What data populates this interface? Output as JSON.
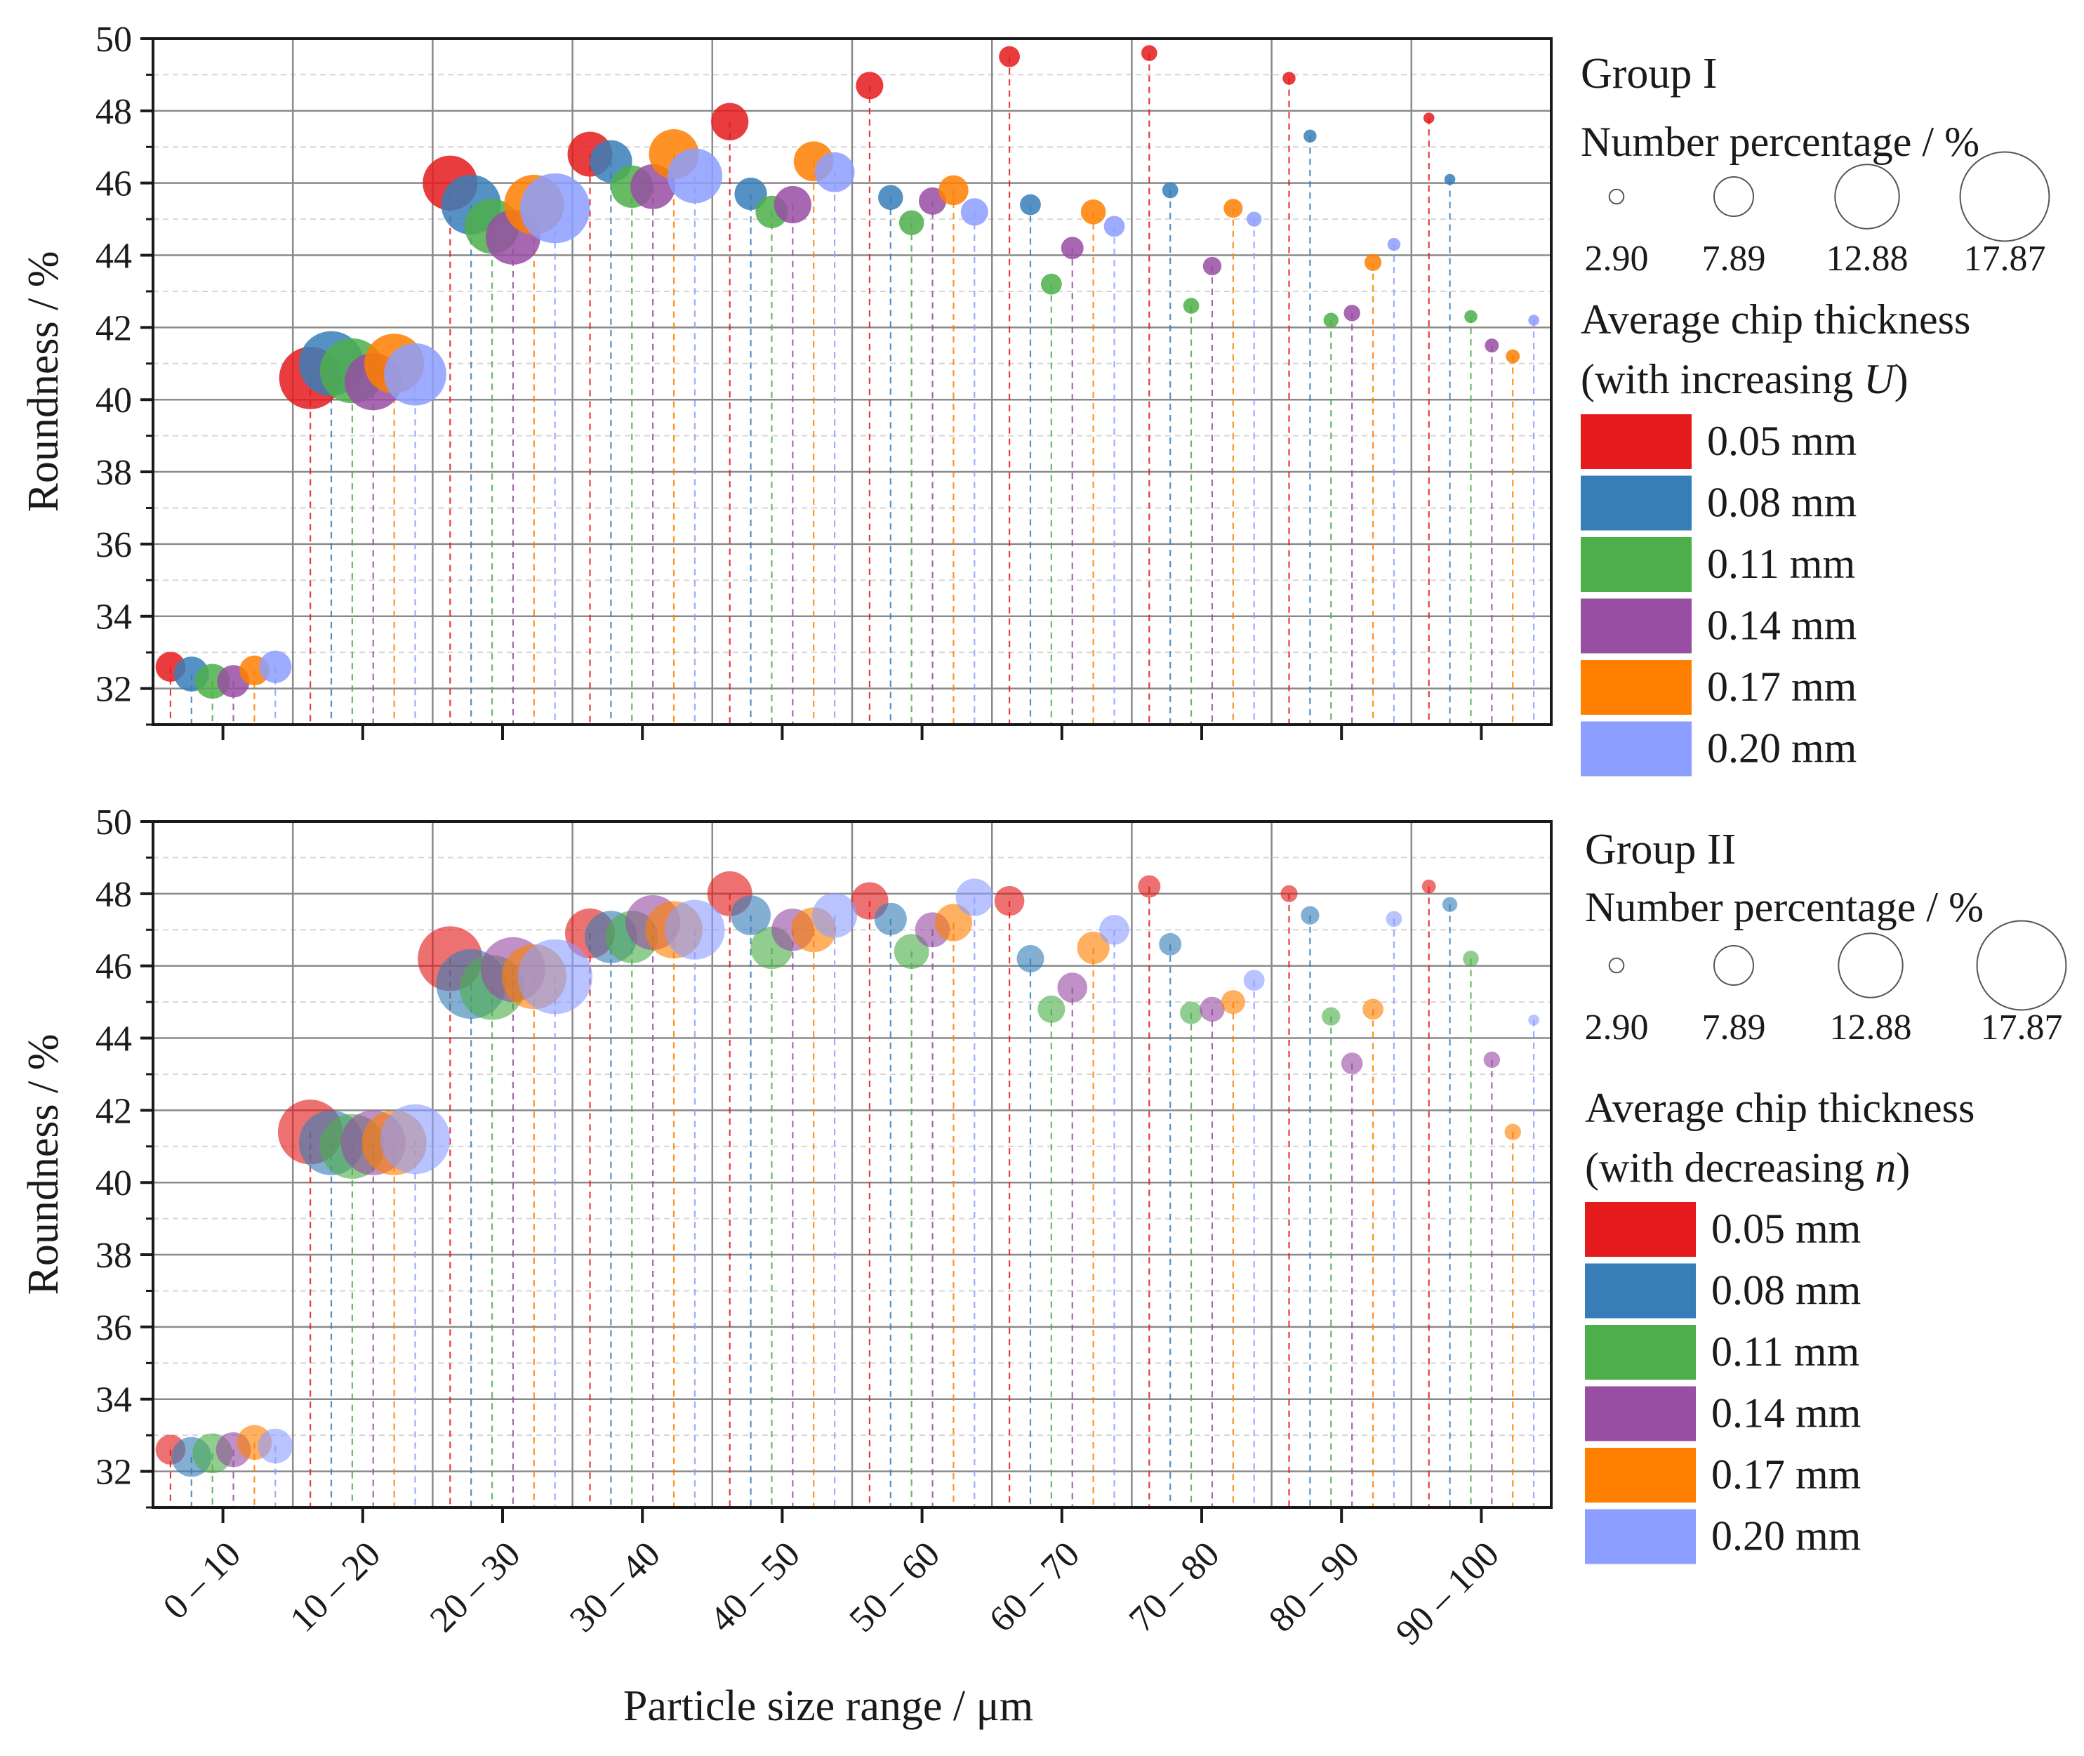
{
  "figure": {
    "xlabel": "Particle size range / μm",
    "categories": [
      "0 – 10",
      "10 – 20",
      "20 – 30",
      "30 – 40",
      "40 – 50",
      "50 – 60",
      "60 – 70",
      "70 – 80",
      "80 – 90",
      "90 – 100"
    ],
    "series_colors": [
      "#e41a1c",
      "#377eb8",
      "#4daf4a",
      "#984ea3",
      "#ff7f00",
      "#8c9eff"
    ],
    "size_legend_values": [
      2.9,
      7.89,
      12.88,
      17.87
    ],
    "size_legend_labels": [
      "2.90",
      "7.89",
      "12.88",
      "17.87"
    ],
    "series_labels": [
      "0.05 mm",
      "0.08 mm",
      "0.11 mm",
      "0.14 mm",
      "0.17 mm",
      "0.20 mm"
    ]
  },
  "chart_data": [
    {
      "type": "scatter",
      "subtype": "bubble",
      "group_title": "Group I",
      "size_title": "Number percentage / %",
      "color_title_line1": "Average chip thickness",
      "color_title_prefix": "(with increasing ",
      "color_title_var": "U",
      "color_title_suffix": ")",
      "ylabel": "Roundness / %",
      "ylim": [
        31,
        50
      ],
      "yticks": [
        32,
        34,
        36,
        38,
        40,
        42,
        44,
        46,
        48,
        50
      ],
      "ytick_labels": [
        "32",
        "34",
        "36",
        "38",
        "40",
        "42",
        "44",
        "46",
        "48",
        "50"
      ],
      "series": [
        {
          "name": "0.05 mm",
          "y": [
            32.6,
            40.6,
            46.0,
            46.8,
            47.7,
            48.7,
            49.5,
            49.6,
            48.9,
            47.8
          ],
          "size": [
            6.0,
            12.5,
            11.0,
            9.0,
            7.5,
            5.5,
            4.2,
            3.2,
            2.6,
            2.2
          ]
        },
        {
          "name": "0.08 mm",
          "y": [
            32.4,
            41.0,
            45.4,
            46.6,
            45.7,
            45.6,
            45.4,
            45.8,
            47.3,
            46.1
          ],
          "size": [
            7.0,
            13.0,
            12.0,
            8.5,
            6.5,
            5.0,
            4.2,
            3.2,
            2.6,
            2.2
          ]
        },
        {
          "name": "0.11 mm",
          "y": [
            32.2,
            40.8,
            44.8,
            45.9,
            45.2,
            44.9,
            43.2,
            42.6,
            42.2,
            42.3
          ],
          "size": [
            7.0,
            13.0,
            11.0,
            8.5,
            6.5,
            5.0,
            4.2,
            3.2,
            3.0,
            2.6
          ]
        },
        {
          "name": "0.14 mm",
          "y": [
            32.2,
            40.5,
            44.5,
            45.9,
            45.4,
            45.5,
            44.2,
            43.7,
            42.4,
            41.5
          ],
          "size": [
            6.5,
            11.5,
            11.0,
            9.0,
            7.5,
            5.5,
            4.5,
            3.7,
            3.3,
            2.8
          ]
        },
        {
          "name": "0.17 mm",
          "y": [
            32.5,
            41.0,
            45.4,
            46.8,
            46.6,
            45.8,
            45.2,
            45.3,
            43.8,
            41.2
          ],
          "size": [
            6.0,
            12.0,
            12.0,
            10.0,
            8.0,
            6.0,
            5.0,
            3.8,
            3.4,
            2.8
          ]
        },
        {
          "name": "0.20 mm",
          "y": [
            32.6,
            40.7,
            45.3,
            46.2,
            46.3,
            45.2,
            44.8,
            45.0,
            44.3,
            42.2
          ],
          "size": [
            6.5,
            12.5,
            14.0,
            11.0,
            8.0,
            5.5,
            4.2,
            3.0,
            2.6,
            2.2
          ]
        }
      ]
    },
    {
      "type": "scatter",
      "subtype": "bubble",
      "group_title": "Group II",
      "size_title": "Number percentage / %",
      "color_title_line1": "Average chip thickness",
      "color_title_prefix": "(with decreasing ",
      "color_title_var": "n",
      "color_title_suffix": ")",
      "ylabel": "Roundness / %",
      "ylim": [
        31,
        50
      ],
      "yticks": [
        32,
        34,
        36,
        38,
        40,
        42,
        44,
        46,
        48,
        50
      ],
      "ytick_labels": [
        "32",
        "34",
        "36",
        "38",
        "40",
        "42",
        "44",
        "46",
        "48",
        "50"
      ],
      "series": [
        {
          "name": "0.05 mm",
          "y": [
            32.6,
            41.4,
            46.2,
            46.9,
            48.0,
            47.8,
            47.8,
            48.2,
            48.0,
            48.2
          ],
          "size": [
            6.0,
            13.0,
            13.0,
            10.0,
            9.0,
            7.5,
            6.0,
            4.5,
            3.4,
            2.8
          ]
        },
        {
          "name": "0.08 mm",
          "y": [
            32.4,
            41.1,
            45.5,
            46.8,
            47.4,
            47.3,
            46.2,
            46.6,
            47.4,
            47.7
          ],
          "size": [
            8.0,
            13.0,
            14.0,
            10.5,
            8.0,
            6.5,
            5.5,
            4.5,
            3.7,
            3.0
          ]
        },
        {
          "name": "0.11 mm",
          "y": [
            32.5,
            41.0,
            45.4,
            46.8,
            46.5,
            46.4,
            44.8,
            44.7,
            44.6,
            46.2
          ],
          "size": [
            8.0,
            13.0,
            13.0,
            10.5,
            8.5,
            7.0,
            5.5,
            4.5,
            3.7,
            3.2
          ]
        },
        {
          "name": "0.14 mm",
          "y": [
            32.6,
            41.1,
            45.9,
            47.2,
            47.0,
            47.0,
            45.4,
            44.8,
            43.3,
            43.4
          ],
          "size": [
            7.0,
            13.0,
            13.0,
            11.0,
            8.5,
            7.0,
            6.0,
            5.0,
            4.3,
            3.3
          ]
        },
        {
          "name": "0.17 mm",
          "y": [
            32.8,
            41.1,
            45.7,
            47.0,
            47.0,
            47.2,
            46.5,
            45.0,
            44.8,
            41.4
          ],
          "size": [
            7.0,
            13.0,
            13.0,
            11.5,
            9.0,
            7.5,
            6.5,
            4.8,
            4.2,
            3.3
          ]
        },
        {
          "name": "0.20 mm",
          "y": [
            32.7,
            41.2,
            45.7,
            47.0,
            47.4,
            47.9,
            47.0,
            45.6,
            47.3,
            44.5
          ],
          "size": [
            7.0,
            14.0,
            15.0,
            12.0,
            9.0,
            7.5,
            6.0,
            4.2,
            3.2,
            2.2
          ]
        }
      ]
    }
  ]
}
